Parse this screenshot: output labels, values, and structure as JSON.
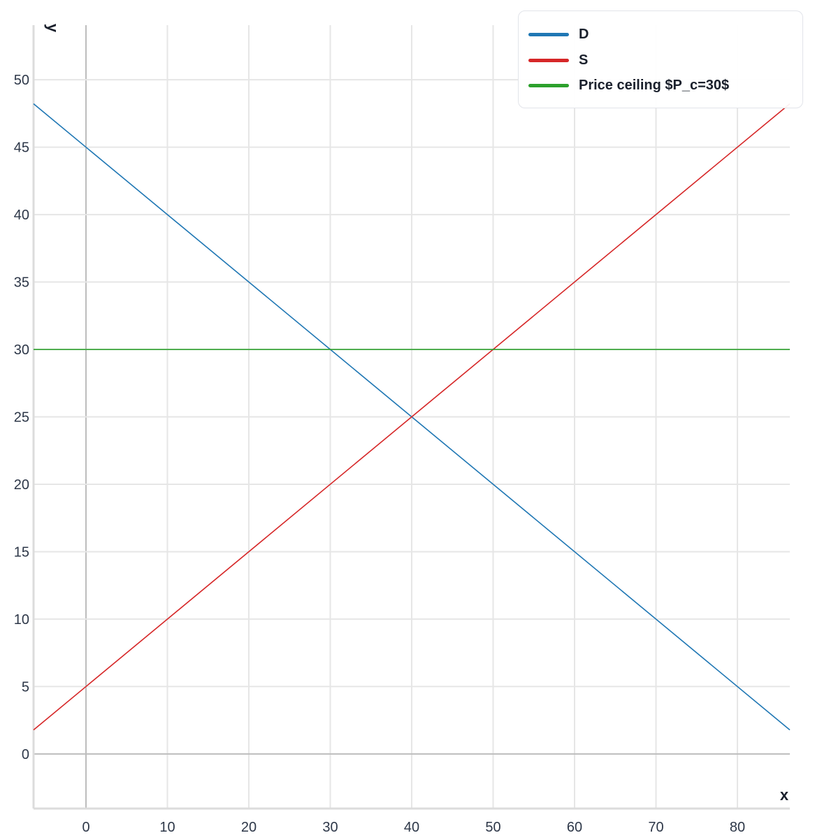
{
  "chart_data": {
    "type": "line",
    "title": "",
    "xlabel": "x",
    "ylabel": "y",
    "xlim": [
      -6.44,
      86.44
    ],
    "ylim": [
      -4.05,
      54.05
    ],
    "xticks": [
      0,
      10,
      20,
      30,
      40,
      50,
      60,
      70,
      80
    ],
    "yticks": [
      0,
      5,
      10,
      15,
      20,
      25,
      30,
      35,
      40,
      45,
      50
    ],
    "grid": true,
    "legend_position": "top-right",
    "series": [
      {
        "name": "D",
        "color": "#1f77b4",
        "x": [
          -6.44,
          86.44
        ],
        "y": [
          48.22,
          1.78
        ]
      },
      {
        "name": "S",
        "color": "#d62728",
        "x": [
          -6.44,
          86.44
        ],
        "y": [
          1.78,
          48.22
        ]
      },
      {
        "name": "Price ceiling $P_c=30$",
        "color": "#2ca02c",
        "x": [
          -6.44,
          86.44
        ],
        "y": [
          30,
          30
        ]
      }
    ]
  }
}
